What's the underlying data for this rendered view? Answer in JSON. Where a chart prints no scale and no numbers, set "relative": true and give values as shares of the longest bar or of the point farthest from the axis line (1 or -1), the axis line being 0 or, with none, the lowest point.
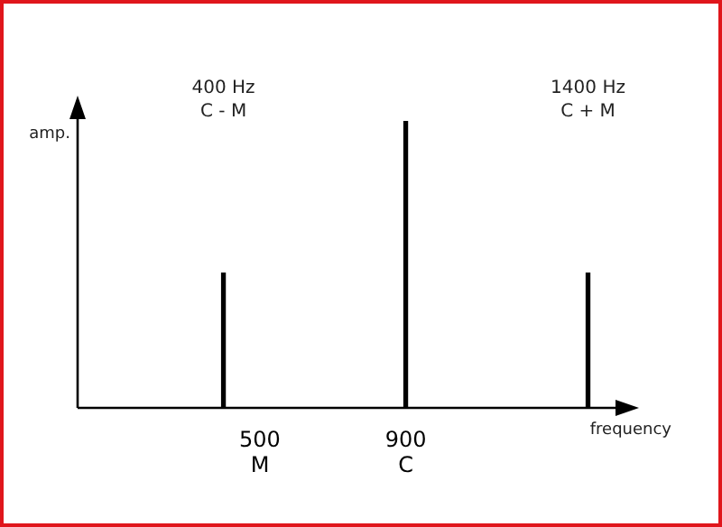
{
  "chart_data": {
    "type": "bar",
    "relative": true,
    "xlabel": "frequency",
    "ylabel": "amp.",
    "x": [
      400,
      900,
      1400
    ],
    "series": [
      {
        "color": "#000000",
        "values": [
          0.47,
          1,
          0.47
        ]
      }
    ],
    "xlim": [
      0,
      1520
    ],
    "xticks": [
      {
        "value": 500,
        "label": "500\nM"
      },
      {
        "value": 900,
        "label": "900\nC"
      }
    ],
    "annotations": [
      "400 Hz\nC - M",
      "1400 Hz\nC + M"
    ]
  }
}
